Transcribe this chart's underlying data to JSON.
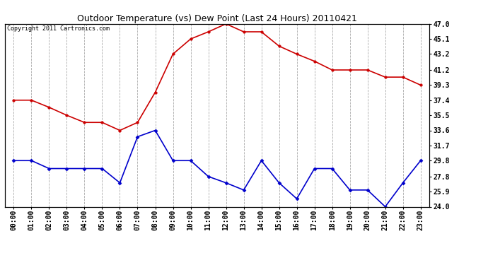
{
  "title": "Outdoor Temperature (vs) Dew Point (Last 24 Hours) 20110421",
  "copyright": "Copyright 2011 Cartronics.com",
  "x_labels": [
    "00:00",
    "01:00",
    "02:00",
    "03:00",
    "04:00",
    "05:00",
    "06:00",
    "07:00",
    "08:00",
    "09:00",
    "10:00",
    "11:00",
    "12:00",
    "13:00",
    "14:00",
    "15:00",
    "16:00",
    "17:00",
    "18:00",
    "19:00",
    "20:00",
    "21:00",
    "22:00",
    "23:00"
  ],
  "temp_data": [
    37.4,
    37.4,
    36.5,
    35.5,
    34.6,
    34.6,
    33.6,
    34.6,
    38.4,
    43.2,
    45.1,
    46.0,
    47.0,
    46.0,
    46.0,
    44.2,
    43.2,
    42.3,
    41.2,
    41.2,
    41.2,
    40.3,
    40.3,
    39.3
  ],
  "dew_data": [
    29.8,
    29.8,
    28.8,
    28.8,
    28.8,
    28.8,
    27.0,
    32.8,
    33.6,
    29.8,
    29.8,
    27.8,
    27.0,
    26.1,
    29.8,
    27.0,
    25.0,
    28.8,
    28.8,
    26.1,
    26.1,
    24.0,
    27.0,
    29.8
  ],
  "temp_color": "#cc0000",
  "dew_color": "#0000cc",
  "bg_color": "#ffffff",
  "grid_color": "#aaaaaa",
  "ylim_min": 24.0,
  "ylim_max": 47.0,
  "yticks": [
    24.0,
    25.9,
    27.8,
    29.8,
    31.7,
    33.6,
    35.5,
    37.4,
    39.3,
    41.2,
    43.2,
    45.1,
    47.0
  ],
  "title_fontsize": 9,
  "copyright_fontsize": 6,
  "tick_fontsize": 7
}
